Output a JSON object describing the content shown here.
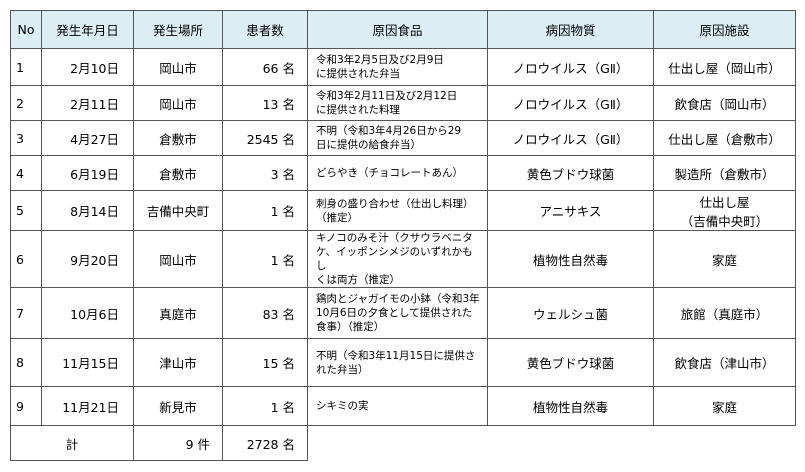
{
  "table": {
    "columns": [
      "No",
      "発生年月日",
      "発生場所",
      "患者数",
      "原因食品",
      "病因物質",
      "原因施設"
    ],
    "rows": [
      [
        "1",
        "2月10日",
        "岡山市",
        "66 名",
        "令和3年2月5日及び2月9日\nに提供された弁当",
        "ノロウイルス（GⅡ）",
        "仕出し屋（岡山市）"
      ],
      [
        "2",
        "2月11日",
        "岡山市",
        "13 名",
        "令和3年2月11日及び2月12日\nに提供された料理",
        "ノロウイルス（GⅡ）",
        "飲食店（岡山市）"
      ],
      [
        "3",
        "4月27日",
        "倉敷市",
        "2545 名",
        "不明（令和3年4月26日から29\n日に提供の給食弁当）",
        "ノロウイルス（GⅡ）",
        "仕出し屋（倉敷市）"
      ],
      [
        "4",
        "6月19日",
        "倉敷市",
        "3 名",
        "どらやき（チョコレートあん）",
        "黄色ブドウ球菌",
        "製造所（倉敷市）"
      ],
      [
        "5",
        "8月14日",
        "吉備中央町",
        "1 名",
        "刺身の盛り合わせ（仕出し料理）\n（推定）",
        "アニサキス",
        "仕出し屋\n（吉備中央町）"
      ],
      [
        "6",
        "9月20日",
        "岡山市",
        "1 名",
        "キノコのみそ汁（クサウラベニタ\nケ、イッポンシメジのいずれかもし\nくは両方（推定）",
        "植物性自然毒",
        "家庭"
      ],
      [
        "7",
        "10月6日",
        "真庭市",
        "83 名",
        "鶏肉とジャガイモの小鉢（令和3年\n10月6日の夕食として提供された\n食事）（推定）",
        "ウェルシュ菌",
        "旅館（真庭市）"
      ],
      [
        "8",
        "11月15日",
        "津山市",
        "15 名",
        "不明（令和3年11月15日に提供さ\nれた弁当）",
        "黄色ブドウ球菌",
        "飲食店（津山市）"
      ],
      [
        "9",
        "11月21日",
        "新見市",
        "1 名",
        "シキミの実",
        "植物性自然毒",
        "家庭"
      ]
    ],
    "total": {
      "label": "計",
      "count": "9 件",
      "patients": "2728 名"
    }
  }
}
